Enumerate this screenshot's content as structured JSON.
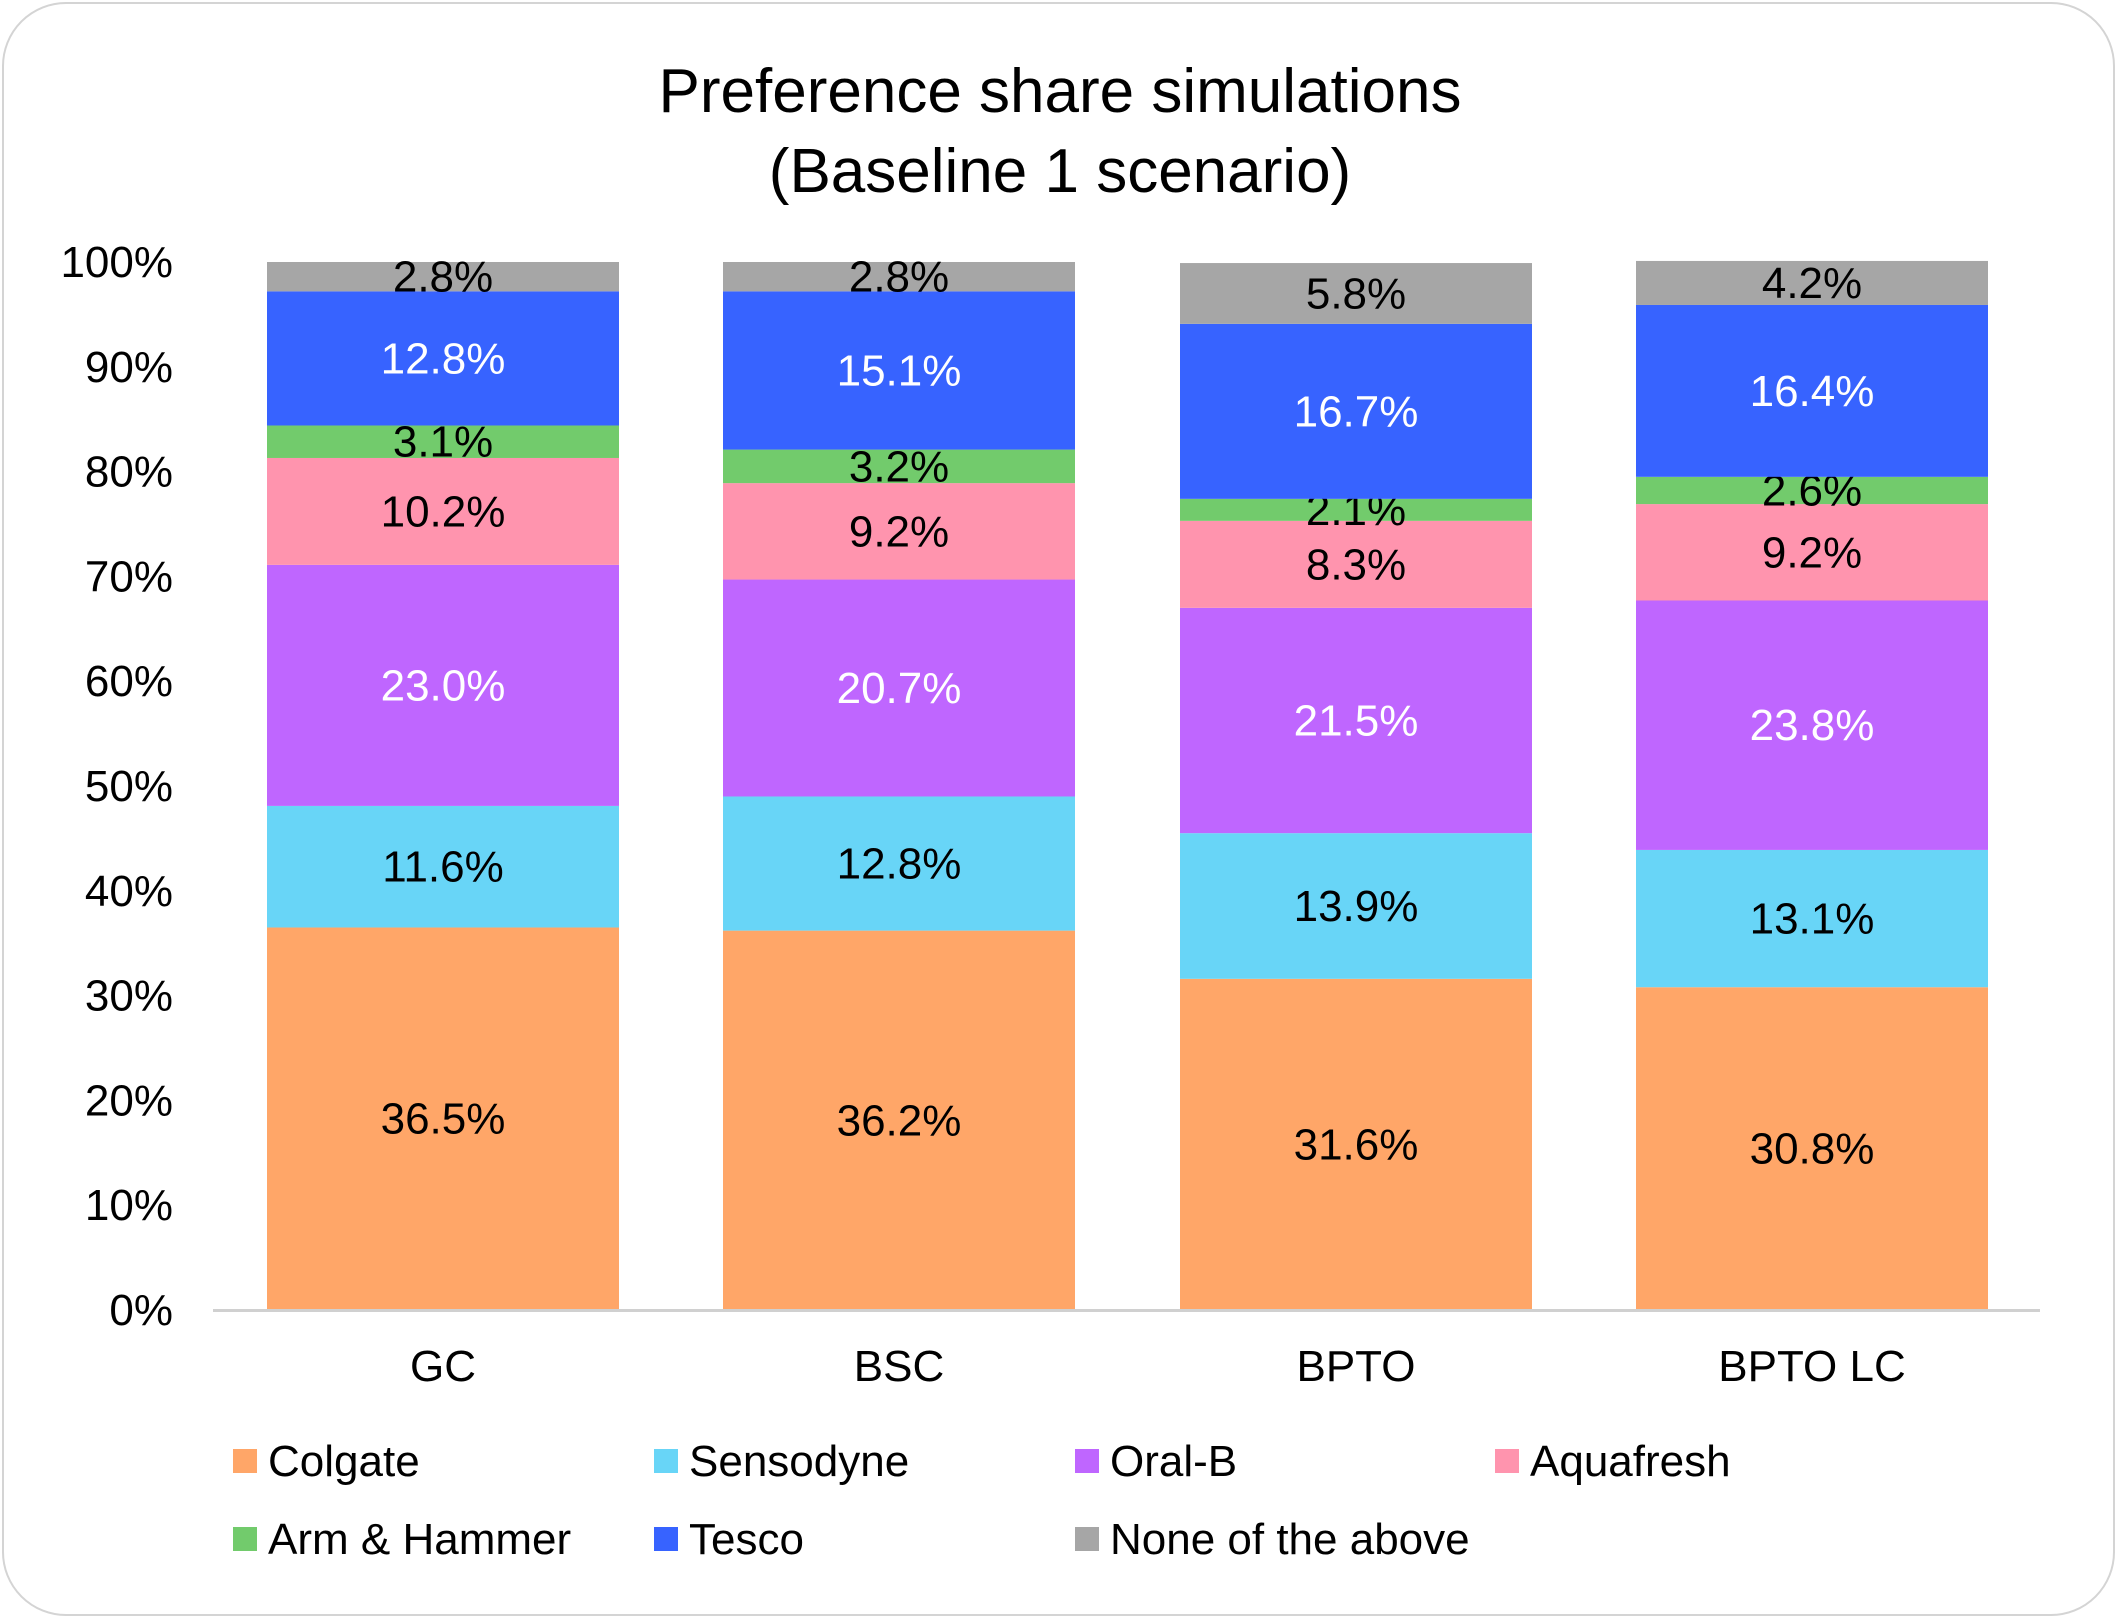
{
  "chart_data": {
    "type": "bar",
    "stacked": true,
    "title": "Preference share simulations",
    "subtitle": "(Baseline 1 scenario)",
    "xlabel": "",
    "ylabel": "",
    "ylim": [
      0,
      100
    ],
    "yticks": [
      "0%",
      "10%",
      "20%",
      "30%",
      "40%",
      "50%",
      "60%",
      "70%",
      "80%",
      "90%",
      "100%"
    ],
    "grid": false,
    "legend_position": "bottom",
    "categories": [
      "GC",
      "BSC",
      "BPTO",
      "BPTO LC"
    ],
    "series": [
      {
        "name": "Colgate",
        "color": "#FFA668",
        "label_color": "#000000",
        "values": [
          36.5,
          36.2,
          31.6,
          30.8
        ],
        "labels": [
          "36.5%",
          "36.2%",
          "31.6%",
          "30.8%"
        ]
      },
      {
        "name": "Sensodyne",
        "color": "#68D5F7",
        "label_color": "#000000",
        "values": [
          11.6,
          12.8,
          13.9,
          13.1
        ],
        "labels": [
          "11.6%",
          "12.8%",
          "13.9%",
          "13.1%"
        ]
      },
      {
        "name": "Oral-B",
        "color": "#BF66FF",
        "label_color": "#FFFFFF",
        "values": [
          23.0,
          20.7,
          21.5,
          23.8
        ],
        "labels": [
          "23.0%",
          "20.7%",
          "21.5%",
          "23.8%"
        ]
      },
      {
        "name": "Aquafresh",
        "color": "#FF94AE",
        "label_color": "#000000",
        "values": [
          10.2,
          9.2,
          8.3,
          9.2
        ],
        "labels": [
          "10.2%",
          "9.2%",
          "8.3%",
          "9.2%"
        ]
      },
      {
        "name": "Arm & Hammer",
        "color": "#72CB6C",
        "label_color": "#000000",
        "values": [
          3.1,
          3.2,
          2.1,
          2.6
        ],
        "labels": [
          "3.1%",
          "3.2%",
          "2.1%",
          "2.6%"
        ]
      },
      {
        "name": "Tesco",
        "color": "#3763FF",
        "label_color": "#FFFFFF",
        "values": [
          12.8,
          15.1,
          16.7,
          16.4
        ],
        "labels": [
          "12.8%",
          "15.1%",
          "16.7%",
          "16.4%"
        ]
      },
      {
        "name": "None of the above",
        "color": "#A6A6A6",
        "label_color": "#000000",
        "values": [
          2.8,
          2.8,
          5.8,
          4.2
        ],
        "labels": [
          "2.8%",
          "2.8%",
          "5.8%",
          "4.2%"
        ]
      }
    ]
  }
}
